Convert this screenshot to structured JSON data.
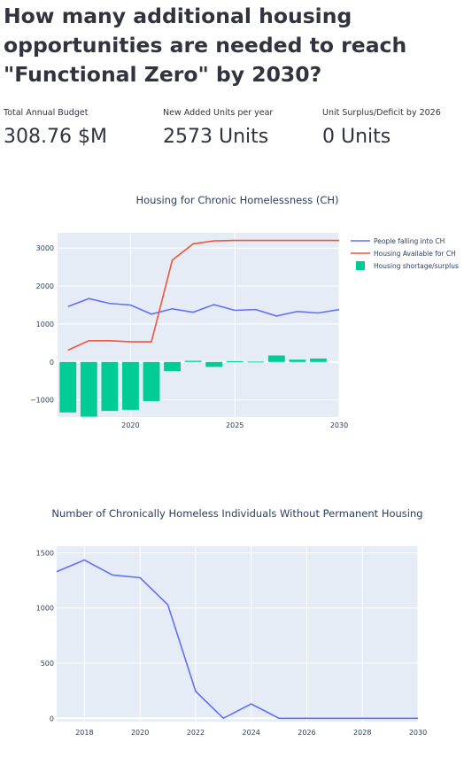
{
  "page": {
    "title": "How many additional housing opportunities are needed to reach \"Functional Zero\" by 2030?"
  },
  "metrics": [
    {
      "label": "Total Annual Budget",
      "value": "308.76 $M"
    },
    {
      "label": "New Added Units per year",
      "value": "2573 Units"
    },
    {
      "label": "Unit Surplus/Deficit by 2026",
      "value": "0 Units"
    }
  ],
  "colors": {
    "series_blue": "#636efa",
    "series_red": "#ef553b",
    "series_green": "#00cc96",
    "plot_bg": "#e5ecf6"
  },
  "chart_data": [
    {
      "type": "line+bar",
      "title": "Housing for Chronic Homelessness (CH)",
      "x": [
        2017,
        2018,
        2019,
        2020,
        2021,
        2022,
        2023,
        2024,
        2025,
        2026,
        2027,
        2028,
        2029,
        2030
      ],
      "xlim": [
        2016.5,
        2030
      ],
      "ylim": [
        -1450,
        3400
      ],
      "xticks": [
        2020,
        2025,
        2030
      ],
      "yticks": [
        -1000,
        0,
        1000,
        2000,
        3000
      ],
      "ytick_labels": [
        "−1000",
        "0",
        "1000",
        "2000",
        "3000"
      ],
      "legend_position": "right",
      "series": [
        {
          "name": "People falling into CH",
          "kind": "line",
          "color": "#636efa",
          "values": [
            1460,
            1670,
            1540,
            1500,
            1260,
            1400,
            1310,
            1510,
            1360,
            1380,
            1210,
            1330,
            1290,
            1380
          ]
        },
        {
          "name": "Housing Available for CH",
          "kind": "line",
          "color": "#ef553b",
          "values": [
            310,
            560,
            560,
            530,
            530,
            2680,
            3110,
            3190,
            3200,
            3200,
            3200,
            3200,
            3200,
            3200
          ]
        },
        {
          "name": "Housing shortage/surplus",
          "kind": "bar",
          "color": "#00cc96",
          "values": [
            -1330,
            -1440,
            -1290,
            -1260,
            -1030,
            -240,
            30,
            -130,
            20,
            10,
            170,
            60,
            90,
            null
          ]
        }
      ]
    },
    {
      "type": "line",
      "title": "Number of Chronically Homeless Individuals Without Permanent Housing",
      "x": [
        2017,
        2018,
        2019,
        2020,
        2021,
        2022,
        2023,
        2024,
        2025,
        2026,
        2027,
        2028,
        2029,
        2030
      ],
      "xlim": [
        2017,
        2030
      ],
      "ylim": [
        -30,
        1560
      ],
      "xticks": [
        2018,
        2020,
        2022,
        2024,
        2026,
        2028,
        2030
      ],
      "yticks": [
        0,
        500,
        1000,
        1500
      ],
      "series": [
        {
          "color": "#636efa",
          "values": [
            1330,
            1435,
            1300,
            1275,
            1030,
            245,
            0,
            130,
            0,
            0,
            0,
            0,
            0,
            0
          ]
        }
      ]
    }
  ]
}
